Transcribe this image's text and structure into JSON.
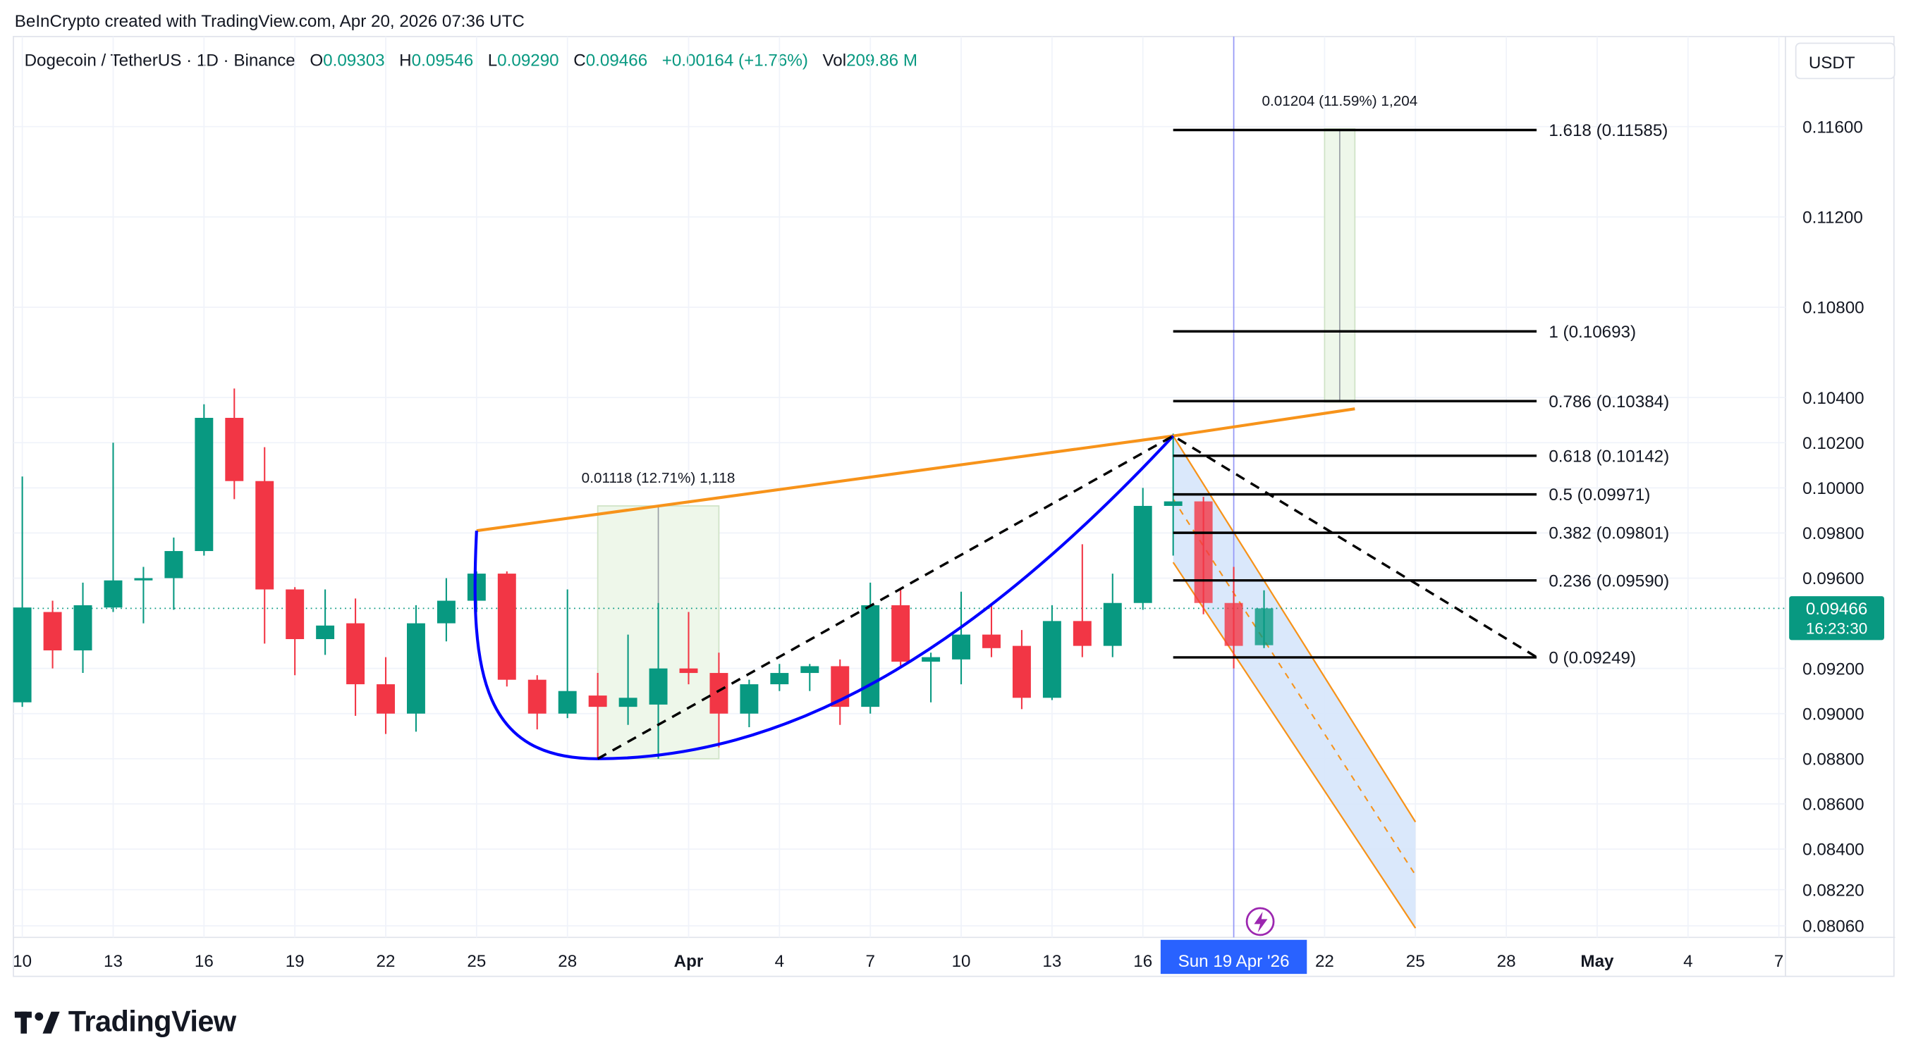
{
  "caption": "BeInCrypto created with TradingView.com, Apr 20, 2026 07:36 UTC",
  "legend": {
    "symbol": "Dogecoin / TetherUS · 1D · Binance",
    "o_label": "O",
    "o_value": "0.09303",
    "h_label": "H",
    "h_value": "0.09546",
    "l_label": "L",
    "l_value": "0.09290",
    "c_label": "C",
    "c_value": "0.09466",
    "change": "+0.00164 (+1.76%)",
    "vol_label": "Vol",
    "vol_value": "209.86 M"
  },
  "currency_button": "USDT",
  "brand": "TradingView",
  "colors": {
    "up": "#089981",
    "down": "#f23645",
    "fib": "#000000",
    "trendline": "#f7931a",
    "curve": "#0000ff",
    "channel_fill": "#d6e6fb",
    "projection_fill": "#eef7ea",
    "crosshair": "#9598f7",
    "time_badge": "#2962ff"
  },
  "chart_data": {
    "type": "candlestick",
    "title": "Dogecoin / TetherUS · 1D · Binance",
    "ylim": [
      0.0798,
      0.118
    ],
    "y_ticks": [
      "0.11600",
      "0.11200",
      "0.10800",
      "0.10400",
      "0.10200",
      "0.10000",
      "0.09800",
      "0.09600",
      "0.09200",
      "0.09000",
      "0.08800",
      "0.08600",
      "0.08400",
      "0.08220",
      "0.08060"
    ],
    "x_ticks": [
      {
        "label": "10",
        "day": 0
      },
      {
        "label": "13",
        "day": 3
      },
      {
        "label": "16",
        "day": 6
      },
      {
        "label": "19",
        "day": 9
      },
      {
        "label": "22",
        "day": 12
      },
      {
        "label": "25",
        "day": 15
      },
      {
        "label": "28",
        "day": 18
      },
      {
        "label": "Apr",
        "day": 22
      },
      {
        "label": "4",
        "day": 25
      },
      {
        "label": "7",
        "day": 28
      },
      {
        "label": "10",
        "day": 31
      },
      {
        "label": "13",
        "day": 34
      },
      {
        "label": "16",
        "day": 37
      },
      {
        "label": "22",
        "day": 43
      },
      {
        "label": "25",
        "day": 46
      },
      {
        "label": "28",
        "day": 49
      },
      {
        "label": "May",
        "day": 52
      },
      {
        "label": "4",
        "day": 55
      },
      {
        "label": "7",
        "day": 58
      }
    ],
    "candles": [
      {
        "date": "Mar 10",
        "o": 0.0905,
        "h": 0.1005,
        "l": 0.0903,
        "c": 0.0947
      },
      {
        "date": "Mar 11",
        "o": 0.0945,
        "h": 0.095,
        "l": 0.092,
        "c": 0.0928
      },
      {
        "date": "Mar 12",
        "o": 0.0928,
        "h": 0.0958,
        "l": 0.0918,
        "c": 0.0948
      },
      {
        "date": "Mar 13",
        "o": 0.0947,
        "h": 0.102,
        "l": 0.0945,
        "c": 0.0959
      },
      {
        "date": "Mar 14",
        "o": 0.0959,
        "h": 0.0965,
        "l": 0.094,
        "c": 0.096
      },
      {
        "date": "Mar 15",
        "o": 0.096,
        "h": 0.0978,
        "l": 0.0946,
        "c": 0.0972
      },
      {
        "date": "Mar 16",
        "o": 0.0972,
        "h": 0.1037,
        "l": 0.097,
        "c": 0.1031
      },
      {
        "date": "Mar 17",
        "o": 0.1031,
        "h": 0.1044,
        "l": 0.0995,
        "c": 0.1003
      },
      {
        "date": "Mar 18",
        "o": 0.1003,
        "h": 0.1018,
        "l": 0.0931,
        "c": 0.0955
      },
      {
        "date": "Mar 19",
        "o": 0.0955,
        "h": 0.0956,
        "l": 0.0917,
        "c": 0.0933
      },
      {
        "date": "Mar 20",
        "o": 0.0933,
        "h": 0.0955,
        "l": 0.0926,
        "c": 0.0939
      },
      {
        "date": "Mar 21",
        "o": 0.094,
        "h": 0.0951,
        "l": 0.0899,
        "c": 0.0913
      },
      {
        "date": "Mar 22",
        "o": 0.0913,
        "h": 0.0925,
        "l": 0.0891,
        "c": 0.09
      },
      {
        "date": "Mar 23",
        "o": 0.09,
        "h": 0.0948,
        "l": 0.0892,
        "c": 0.094
      },
      {
        "date": "Mar 24",
        "o": 0.094,
        "h": 0.096,
        "l": 0.0932,
        "c": 0.095
      },
      {
        "date": "Mar 25",
        "o": 0.095,
        "h": 0.0963,
        "l": 0.0945,
        "c": 0.0962
      },
      {
        "date": "Mar 26",
        "o": 0.0962,
        "h": 0.0963,
        "l": 0.0912,
        "c": 0.0915
      },
      {
        "date": "Mar 27",
        "o": 0.0915,
        "h": 0.0917,
        "l": 0.0893,
        "c": 0.09
      },
      {
        "date": "Mar 28",
        "o": 0.09,
        "h": 0.0955,
        "l": 0.0898,
        "c": 0.091
      },
      {
        "date": "Mar 29",
        "o": 0.0908,
        "h": 0.0918,
        "l": 0.088,
        "c": 0.0903
      },
      {
        "date": "Mar 30",
        "o": 0.0903,
        "h": 0.0935,
        "l": 0.0895,
        "c": 0.0907
      },
      {
        "date": "Mar 31",
        "o": 0.0904,
        "h": 0.0949,
        "l": 0.088,
        "c": 0.092
      },
      {
        "date": "Apr 1",
        "o": 0.092,
        "h": 0.0945,
        "l": 0.0913,
        "c": 0.0918
      },
      {
        "date": "Apr 2",
        "o": 0.0918,
        "h": 0.0927,
        "l": 0.0885,
        "c": 0.09
      },
      {
        "date": "Apr 3",
        "o": 0.09,
        "h": 0.0915,
        "l": 0.0894,
        "c": 0.0913
      },
      {
        "date": "Apr 4",
        "o": 0.0913,
        "h": 0.0922,
        "l": 0.091,
        "c": 0.0918
      },
      {
        "date": "Apr 5",
        "o": 0.0918,
        "h": 0.0922,
        "l": 0.091,
        "c": 0.0921
      },
      {
        "date": "Apr 6",
        "o": 0.0921,
        "h": 0.0924,
        "l": 0.0895,
        "c": 0.0903
      },
      {
        "date": "Apr 7",
        "o": 0.0903,
        "h": 0.0958,
        "l": 0.09,
        "c": 0.0948
      },
      {
        "date": "Apr 8",
        "o": 0.0948,
        "h": 0.0955,
        "l": 0.092,
        "c": 0.0923
      },
      {
        "date": "Apr 9",
        "o": 0.0923,
        "h": 0.0927,
        "l": 0.0905,
        "c": 0.0925
      },
      {
        "date": "Apr 10",
        "o": 0.0924,
        "h": 0.0954,
        "l": 0.0913,
        "c": 0.0935
      },
      {
        "date": "Apr 11",
        "o": 0.0935,
        "h": 0.0948,
        "l": 0.0925,
        "c": 0.0929
      },
      {
        "date": "Apr 12",
        "o": 0.093,
        "h": 0.0937,
        "l": 0.0902,
        "c": 0.0907
      },
      {
        "date": "Apr 13",
        "o": 0.0907,
        "h": 0.0948,
        "l": 0.0906,
        "c": 0.0941
      },
      {
        "date": "Apr 14",
        "o": 0.0941,
        "h": 0.0975,
        "l": 0.0925,
        "c": 0.093
      },
      {
        "date": "Apr 15",
        "o": 0.093,
        "h": 0.0962,
        "l": 0.0925,
        "c": 0.0949
      },
      {
        "date": "Apr 16",
        "o": 0.0949,
        "h": 0.1,
        "l": 0.0946,
        "c": 0.0992
      },
      {
        "date": "Apr 17",
        "o": 0.0992,
        "h": 0.1024,
        "l": 0.097,
        "c": 0.0994
      },
      {
        "date": "Apr 18",
        "o": 0.0994,
        "h": 0.0996,
        "l": 0.0944,
        "c": 0.0949
      },
      {
        "date": "Apr 19",
        "o": 0.0949,
        "h": 0.0965,
        "l": 0.092,
        "c": 0.093
      },
      {
        "date": "Apr 20",
        "o": 0.09303,
        "h": 0.09546,
        "l": 0.0929,
        "c": 0.09466
      }
    ],
    "fib_levels": [
      {
        "label": "1.618 (0.11585)",
        "value": 0.11585
      },
      {
        "label": "1 (0.10693)",
        "value": 0.10693
      },
      {
        "label": "0.786 (0.10384)",
        "value": 0.10384
      },
      {
        "label": "0.618 (0.10142)",
        "value": 0.10142
      },
      {
        "label": "0.5 (0.09971)",
        "value": 0.09971
      },
      {
        "label": "0.382 (0.09801)",
        "value": 0.09801
      },
      {
        "label": "0.236 (0.09590)",
        "value": 0.0959
      },
      {
        "label": "0 (0.09249)",
        "value": 0.09249
      }
    ],
    "fib_start_day": 38,
    "fib_end_day": 50,
    "measure_1": {
      "label": "0.01118 (12.71%) 1,118",
      "day_from": 19,
      "day_to": 23,
      "low": 0.088,
      "high": 0.0992
    },
    "measure_2": {
      "label": "0.01204 (11.59%) 1,204",
      "day_from": 43,
      "day_to": 44,
      "low": 0.1038,
      "high": 0.1159
    },
    "resistance_line": [
      {
        "day": 15,
        "value": 0.0981
      },
      {
        "day": 38,
        "value": 0.1023
      },
      {
        "day": 44,
        "value": 0.1035
      }
    ],
    "rounding_bottom": [
      {
        "day": 15,
        "value": 0.0981
      },
      {
        "day": 19,
        "value": 0.088
      },
      {
        "day": 38,
        "value": 0.1023
      }
    ],
    "dashed_path": [
      {
        "day": 19,
        "value": 0.088
      },
      {
        "day": 38,
        "value": 0.1023
      },
      {
        "day": 50,
        "value": 0.0925
      }
    ],
    "channel": {
      "upper_start": {
        "day": 38,
        "value": 0.1023
      },
      "upper_end": {
        "day": 46,
        "value": 0.0852
      },
      "lower_start": {
        "day": 38,
        "value": 0.0967
      },
      "lower_end": {
        "day": 46,
        "value": 0.0805
      }
    },
    "last_price": {
      "value": 0.09466,
      "label": "0.09466",
      "countdown": "16:23:30"
    },
    "crosshair": {
      "day": 40,
      "label": "Sun 19 Apr '26"
    }
  }
}
